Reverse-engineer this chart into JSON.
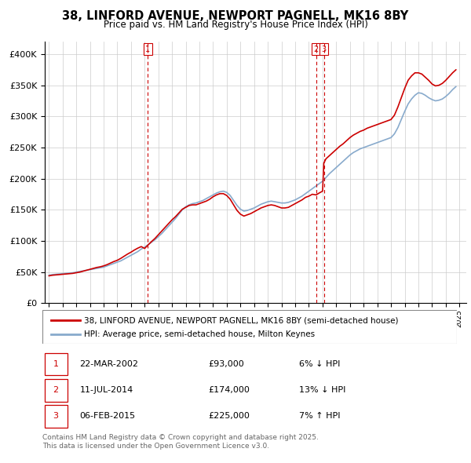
{
  "title": "38, LINFORD AVENUE, NEWPORT PAGNELL, MK16 8BY",
  "subtitle": "Price paid vs. HM Land Registry's House Price Index (HPI)",
  "legend_line1": "38, LINFORD AVENUE, NEWPORT PAGNELL, MK16 8BY (semi-detached house)",
  "legend_line2": "HPI: Average price, semi-detached house, Milton Keynes",
  "transactions": [
    {
      "label": "1",
      "date_num": 2002.22,
      "price": 93000
    },
    {
      "label": "2",
      "date_num": 2014.53,
      "price": 174000
    },
    {
      "label": "3",
      "date_num": 2015.09,
      "price": 225000
    }
  ],
  "transaction_dates_str": [
    "22-MAR-2002",
    "11-JUL-2014",
    "06-FEB-2015"
  ],
  "transaction_prices_str": [
    "£93,000",
    "£174,000",
    "£225,000"
  ],
  "transaction_notes": [
    "6% ↓ HPI",
    "13% ↓ HPI",
    "7% ↑ HPI"
  ],
  "footer1": "Contains HM Land Registry data © Crown copyright and database right 2025.",
  "footer2": "This data is licensed under the Open Government Licence v3.0.",
  "price_color": "#cc0000",
  "hpi_color": "#88aacc",
  "background_color": "#ffffff",
  "grid_color": "#cccccc",
  "ylim": [
    0,
    420000
  ],
  "yticks": [
    0,
    50000,
    100000,
    150000,
    200000,
    250000,
    300000,
    350000,
    400000
  ],
  "ytick_labels": [
    "£0",
    "£50K",
    "£100K",
    "£150K",
    "£200K",
    "£250K",
    "£300K",
    "£350K",
    "£400K"
  ],
  "hpi_data_years": [
    1995,
    1995.25,
    1995.5,
    1995.75,
    1996,
    1996.25,
    1996.5,
    1996.75,
    1997,
    1997.25,
    1997.5,
    1997.75,
    1998,
    1998.25,
    1998.5,
    1998.75,
    1999,
    1999.25,
    1999.5,
    1999.75,
    2000,
    2000.25,
    2000.5,
    2000.75,
    2001,
    2001.25,
    2001.5,
    2001.75,
    2002,
    2002.25,
    2002.5,
    2002.75,
    2003,
    2003.25,
    2003.5,
    2003.75,
    2004,
    2004.25,
    2004.5,
    2004.75,
    2005,
    2005.25,
    2005.5,
    2005.75,
    2006,
    2006.25,
    2006.5,
    2006.75,
    2007,
    2007.25,
    2007.5,
    2007.75,
    2008,
    2008.25,
    2008.5,
    2008.75,
    2009,
    2009.25,
    2009.5,
    2009.75,
    2010,
    2010.25,
    2010.5,
    2010.75,
    2011,
    2011.25,
    2011.5,
    2011.75,
    2012,
    2012.25,
    2012.5,
    2012.75,
    2013,
    2013.25,
    2013.5,
    2013.75,
    2014,
    2014.25,
    2014.5,
    2014.75,
    2015,
    2015.25,
    2015.5,
    2015.75,
    2016,
    2016.25,
    2016.5,
    2016.75,
    2017,
    2017.25,
    2017.5,
    2017.75,
    2018,
    2018.25,
    2018.5,
    2018.75,
    2019,
    2019.25,
    2019.5,
    2019.75,
    2020,
    2020.25,
    2020.5,
    2020.75,
    2021,
    2021.25,
    2021.5,
    2021.75,
    2022,
    2022.25,
    2022.5,
    2022.75,
    2023,
    2023.25,
    2023.5,
    2023.75,
    2024,
    2024.25,
    2024.5,
    2024.75
  ],
  "hpi_data_values": [
    45000,
    46000,
    46500,
    47000,
    47500,
    48000,
    48500,
    49000,
    50000,
    51000,
    52000,
    53000,
    54000,
    55000,
    56000,
    57000,
    58000,
    60000,
    62000,
    64000,
    66000,
    68000,
    71000,
    74000,
    77000,
    80000,
    83000,
    87000,
    90000,
    94000,
    98000,
    102000,
    107000,
    112000,
    118000,
    124000,
    130000,
    136000,
    143000,
    150000,
    155000,
    158000,
    160000,
    161000,
    163000,
    165000,
    168000,
    171000,
    174000,
    177000,
    179000,
    180000,
    178000,
    173000,
    165000,
    157000,
    151000,
    148000,
    149000,
    151000,
    153000,
    156000,
    159000,
    161000,
    163000,
    164000,
    163000,
    162000,
    161000,
    161000,
    162000,
    164000,
    166000,
    169000,
    172000,
    176000,
    180000,
    184000,
    188000,
    192000,
    196000,
    202000,
    208000,
    213000,
    218000,
    223000,
    228000,
    233000,
    238000,
    242000,
    245000,
    248000,
    250000,
    252000,
    254000,
    256000,
    258000,
    260000,
    262000,
    264000,
    266000,
    272000,
    282000,
    295000,
    308000,
    320000,
    328000,
    334000,
    338000,
    337000,
    334000,
    330000,
    327000,
    325000,
    326000,
    328000,
    332000,
    337000,
    343000,
    348000
  ],
  "price_data_years": [
    1995,
    1995.25,
    1995.5,
    1995.75,
    1996,
    1996.25,
    1996.5,
    1996.75,
    1997,
    1997.25,
    1997.5,
    1997.75,
    1998,
    1998.25,
    1998.5,
    1998.75,
    1999,
    1999.25,
    1999.5,
    1999.75,
    2000,
    2000.25,
    2000.5,
    2000.75,
    2001,
    2001.25,
    2001.5,
    2001.75,
    2002,
    2002.22,
    2002.5,
    2002.75,
    2003,
    2003.25,
    2003.5,
    2003.75,
    2004,
    2004.25,
    2004.5,
    2004.75,
    2005,
    2005.25,
    2005.5,
    2005.75,
    2006,
    2006.25,
    2006.5,
    2006.75,
    2007,
    2007.25,
    2007.5,
    2007.75,
    2008,
    2008.25,
    2008.5,
    2008.75,
    2009,
    2009.25,
    2009.5,
    2009.75,
    2010,
    2010.25,
    2010.5,
    2010.75,
    2011,
    2011.25,
    2011.5,
    2011.75,
    2012,
    2012.25,
    2012.5,
    2012.75,
    2013,
    2013.25,
    2013.5,
    2013.75,
    2014,
    2014.25,
    2014.53,
    2014.75,
    2015,
    2015.09,
    2015.25,
    2015.5,
    2015.75,
    2016,
    2016.25,
    2016.5,
    2016.75,
    2017,
    2017.25,
    2017.5,
    2017.75,
    2018,
    2018.25,
    2018.5,
    2018.75,
    2019,
    2019.25,
    2019.5,
    2019.75,
    2020,
    2020.25,
    2020.5,
    2020.75,
    2021,
    2021.25,
    2021.5,
    2021.75,
    2022,
    2022.25,
    2022.5,
    2022.75,
    2023,
    2023.25,
    2023.5,
    2023.75,
    2024,
    2024.25,
    2024.5,
    2024.75
  ],
  "price_data_values": [
    44000,
    45000,
    45500,
    46000,
    46500,
    47000,
    47500,
    48000,
    49000,
    50000,
    51500,
    53000,
    54500,
    56000,
    57500,
    58500,
    60000,
    62000,
    64500,
    67000,
    69000,
    72000,
    75500,
    79000,
    82000,
    85500,
    88500,
    91000,
    88000,
    93000,
    99000,
    104000,
    110000,
    116000,
    122000,
    128000,
    134000,
    139000,
    145000,
    151000,
    154000,
    157000,
    158000,
    158000,
    160000,
    162000,
    164000,
    167000,
    171000,
    174000,
    176000,
    176000,
    173000,
    167000,
    158000,
    149000,
    143000,
    140000,
    142000,
    144000,
    147000,
    150000,
    153000,
    155000,
    157000,
    158000,
    157000,
    155000,
    153000,
    153000,
    154000,
    157000,
    160000,
    163000,
    166000,
    170000,
    172000,
    175000,
    174000,
    177000,
    180000,
    225000,
    232000,
    237000,
    242000,
    247000,
    252000,
    256000,
    261000,
    266000,
    270000,
    273000,
    276000,
    278000,
    281000,
    283000,
    285000,
    287000,
    289000,
    291000,
    293000,
    295000,
    302000,
    315000,
    330000,
    345000,
    358000,
    365000,
    370000,
    370000,
    368000,
    363000,
    358000,
    352000,
    349000,
    350000,
    353000,
    358000,
    364000,
    370000,
    375000
  ]
}
